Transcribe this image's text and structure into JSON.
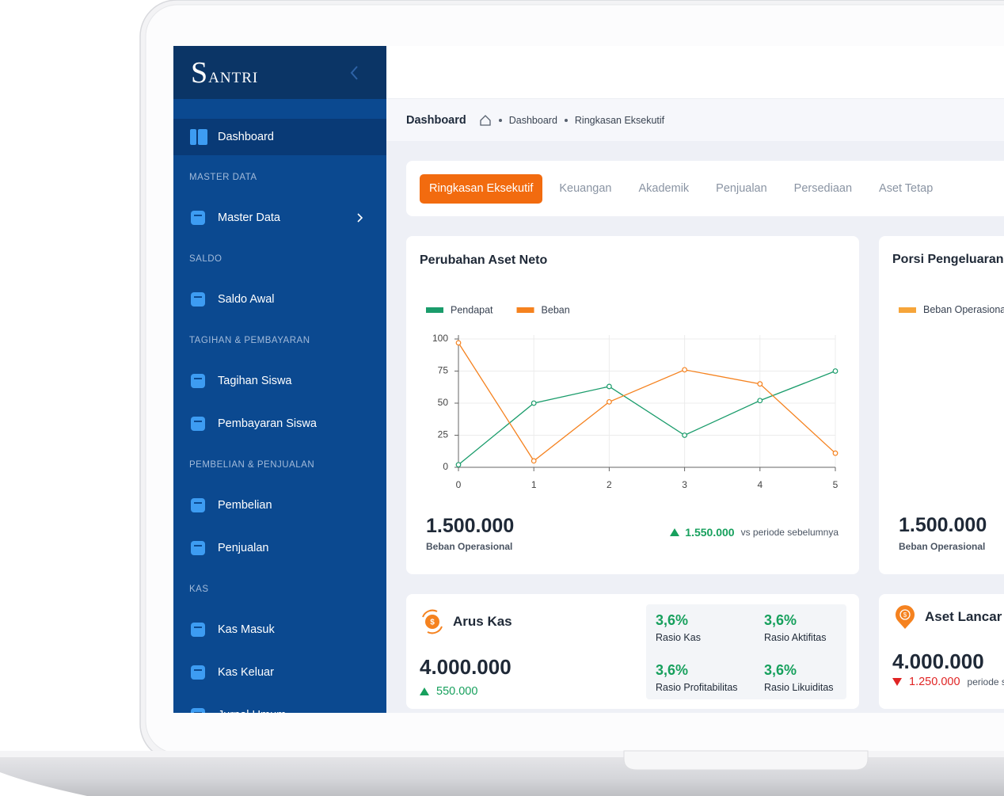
{
  "sidebar": {
    "brand": "SANTRI",
    "home": "Dashboard",
    "sections": [
      {
        "heading": "MASTER DATA",
        "items": [
          "Master Data"
        ]
      },
      {
        "heading": "SALDO",
        "items": [
          "Saldo Awal"
        ]
      },
      {
        "heading": "TAGIHAN & PEMBAYARAN",
        "items": [
          "Tagihan Siswa",
          "Pembayaran Siswa"
        ]
      },
      {
        "heading": "PEMBELIAN & PENJUALAN",
        "items": [
          "Pembelian",
          "Penjualan"
        ]
      },
      {
        "heading": "KAS",
        "items": [
          "Kas Masuk",
          "Kas Keluar",
          "Jurnal Umum"
        ]
      }
    ]
  },
  "breadcrumb": {
    "title": "Dashboard",
    "path": [
      "Dashboard",
      "Ringkasan Eksekutif"
    ]
  },
  "tabs": [
    "Ringkasan Eksekutif",
    "Keuangan",
    "Akademik",
    "Penjualan",
    "Persediaan",
    "Aset Tetap"
  ],
  "chart_data": {
    "type": "line",
    "title": "Perubahan Aset Neto",
    "x": [
      0,
      1,
      2,
      3,
      4,
      5
    ],
    "xlim": [
      0,
      5
    ],
    "xticks": [
      0,
      1,
      2,
      3,
      4,
      5
    ],
    "ylim": [
      0,
      100
    ],
    "yticks": [
      0,
      25,
      50,
      75,
      100
    ],
    "grid": true,
    "series": [
      {
        "name": "Pendapat",
        "color": "#1a9c6b",
        "values": [
          2,
          50,
          63,
          25,
          52,
          75
        ]
      },
      {
        "name": "Beban",
        "color": "#f5821f",
        "values": [
          97,
          5,
          51,
          76,
          65,
          11
        ]
      }
    ]
  },
  "aset_neto_summary": {
    "value": "1.500.000",
    "label": "Beban Operasional",
    "change": "1.550.000",
    "note": "vs periode sebelumnya"
  },
  "porsi_pengeluaran": {
    "title": "Porsi Pengeluaran",
    "legend": "Beban Operasional",
    "value": "1.500.000",
    "label": "Beban Operasional"
  },
  "arus_kas": {
    "title": "Arus Kas",
    "value": "4.000.000",
    "change": "550.000",
    "ratios": [
      {
        "value": "3,6%",
        "label": "Rasio Kas"
      },
      {
        "value": "3,6%",
        "label": "Rasio Aktifitas"
      },
      {
        "value": "3,6%",
        "label": "Rasio Profitabilitas"
      },
      {
        "value": "3,6%",
        "label": "Rasio Likuiditas"
      }
    ]
  },
  "aset_lancar": {
    "title": "Aset Lancar",
    "value": "4.000.000",
    "change": "1.250.000",
    "note": "periode sebelumnya"
  }
}
